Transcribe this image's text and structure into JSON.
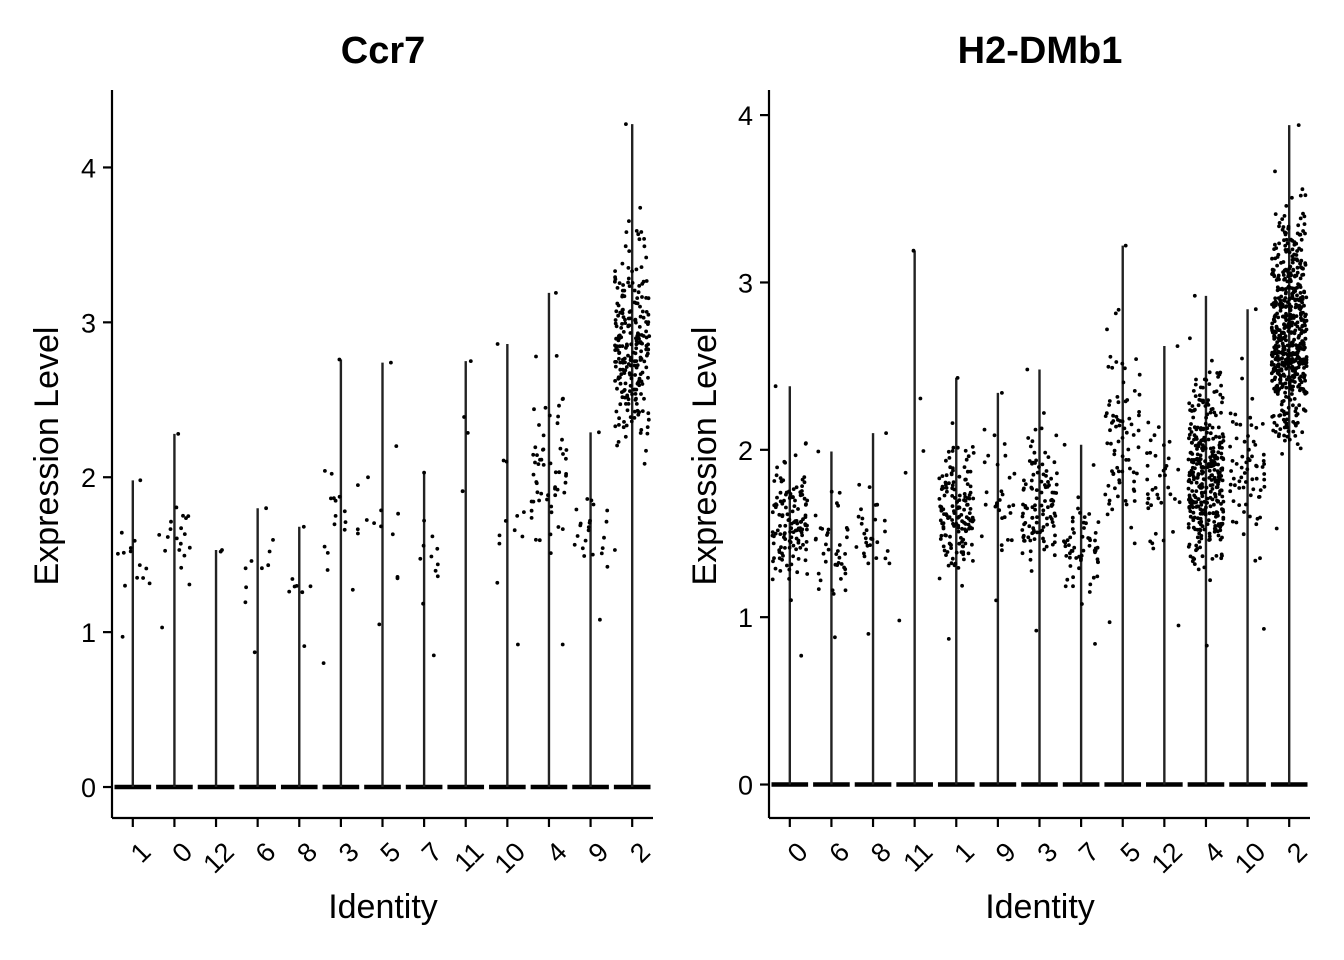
{
  "chart_data": [
    {
      "type": "violin",
      "title": "Ccr7",
      "xlabel": "Identity",
      "ylabel": "Expression Level",
      "ylim": [
        -0.2,
        4.5
      ],
      "yticks": [
        0,
        1,
        2,
        3,
        4
      ],
      "grid": false,
      "categories": [
        "1",
        "0",
        "12",
        "6",
        "8",
        "3",
        "5",
        "7",
        "11",
        "10",
        "4",
        "9",
        "2"
      ],
      "max_values": [
        1.98,
        2.28,
        1.53,
        1.8,
        1.68,
        2.76,
        2.74,
        2.03,
        2.75,
        2.86,
        3.19,
        2.29,
        4.28
      ],
      "nonzero_range": [
        [
          0.97,
          1.98
        ],
        [
          1.03,
          2.28
        ],
        [
          1.52,
          1.53
        ],
        [
          0.87,
          1.8
        ],
        [
          0.91,
          1.68
        ],
        [
          0.8,
          2.76
        ],
        [
          1.05,
          2.74
        ],
        [
          0.85,
          2.03
        ],
        [
          1.91,
          2.75
        ],
        [
          0.92,
          2.86
        ],
        [
          0.92,
          3.19
        ],
        [
          1.08,
          2.29
        ],
        [
          1.53,
          4.28
        ]
      ],
      "nonzero_counts": [
        14,
        20,
        2,
        10,
        8,
        20,
        12,
        12,
        4,
        12,
        60,
        24,
        240
      ]
    },
    {
      "type": "violin",
      "title": "H2-DMb1",
      "xlabel": "Identity",
      "ylabel": "Expression Level",
      "ylim": [
        -0.2,
        4.15
      ],
      "yticks": [
        0,
        1,
        2,
        3,
        4
      ],
      "grid": false,
      "categories": [
        "0",
        "6",
        "8",
        "11",
        "1",
        "9",
        "3",
        "7",
        "5",
        "12",
        "4",
        "10",
        "2"
      ],
      "max_values": [
        2.38,
        1.99,
        2.1,
        3.19,
        2.43,
        2.34,
        2.48,
        2.03,
        3.22,
        2.62,
        2.92,
        2.84,
        3.94
      ],
      "nonzero_range": [
        [
          0.77,
          2.38
        ],
        [
          0.88,
          1.99
        ],
        [
          0.9,
          2.1
        ],
        [
          0.98,
          3.19
        ],
        [
          0.87,
          2.43
        ],
        [
          1.1,
          2.34
        ],
        [
          0.92,
          2.48
        ],
        [
          0.84,
          2.03
        ],
        [
          0.97,
          3.22
        ],
        [
          0.95,
          2.62
        ],
        [
          0.83,
          2.92
        ],
        [
          0.93,
          2.84
        ],
        [
          1.53,
          3.94
        ]
      ],
      "nonzero_counts": [
        130,
        40,
        30,
        5,
        150,
        30,
        110,
        60,
        80,
        40,
        360,
        70,
        560
      ]
    }
  ]
}
